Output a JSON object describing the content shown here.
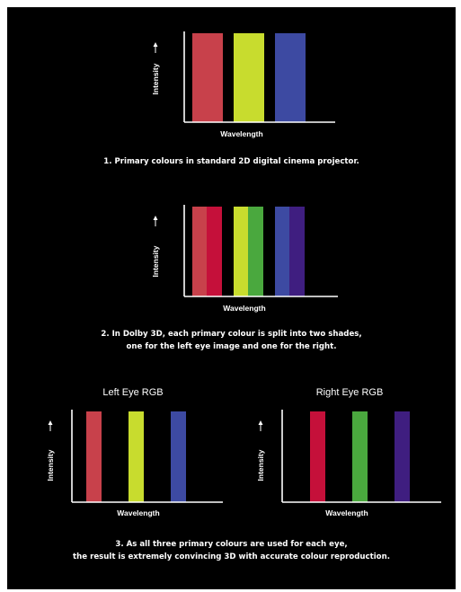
{
  "colors": {
    "background": "#000000",
    "red": "#c8414b",
    "red_alt": "#c5103a",
    "yellow": "#c8dc2e",
    "green": "#4aa83e",
    "blue": "#3d4aa2",
    "violet": "#3f1e80"
  },
  "charts": [
    {
      "id": "standard-2d",
      "title": "",
      "xlabel": "Wavelength",
      "ylabel": "Intensity",
      "bars": [
        {
          "color": "#c8414b"
        },
        {
          "color": "#c8dc2e"
        },
        {
          "color": "#3d4aa2"
        }
      ],
      "caption": [
        "1. Primary colours in standard 2D digital cinema projector."
      ]
    },
    {
      "id": "dolby-3d",
      "title": "",
      "xlabel": "Wavelength",
      "ylabel": "Intensity",
      "bars": [
        {
          "color": "#c8414b"
        },
        {
          "color": "#c5103a"
        },
        {
          "color": "#c8dc2e"
        },
        {
          "color": "#4aa83e"
        },
        {
          "color": "#3d4aa2"
        },
        {
          "color": "#3f1e80"
        }
      ],
      "caption": [
        "2. In Dolby 3D, each primary colour is split into two shades,",
        "one for the left eye image and one for the right."
      ]
    },
    {
      "id": "left-eye",
      "title": "Left Eye RGB",
      "xlabel": "Wavelength",
      "ylabel": "Intensity",
      "bars": [
        {
          "color": "#c8414b"
        },
        {
          "color": "#c8dc2e"
        },
        {
          "color": "#3d4aa2"
        }
      ]
    },
    {
      "id": "right-eye",
      "title": "Right Eye RGB",
      "xlabel": "Wavelength",
      "ylabel": "Intensity",
      "bars": [
        {
          "color": "#c5103a"
        },
        {
          "color": "#4aa83e"
        },
        {
          "color": "#3f1e80"
        }
      ]
    }
  ],
  "final_caption": [
    "3. As all three primary colours are used for each eye,",
    "the result is extremely convincing 3D with accurate colour reproduction."
  ]
}
